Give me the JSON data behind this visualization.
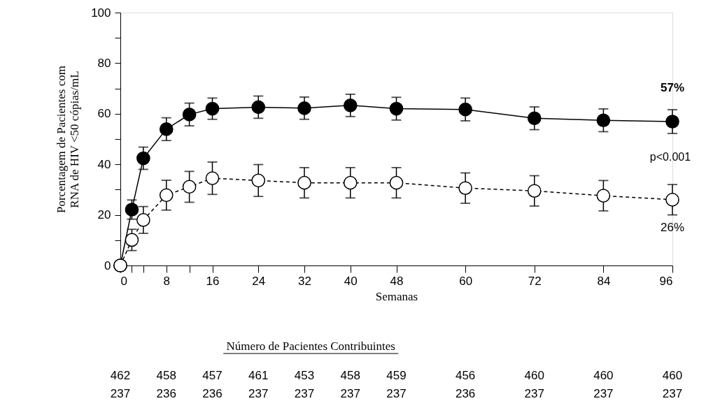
{
  "chart_data": {
    "type": "line",
    "xlabel": "Semanas",
    "ylabel": "Porcentagem de Pacientes com\nRNA de HIV <50 cópias/mL",
    "x": [
      0,
      2,
      4,
      8,
      12,
      16,
      24,
      32,
      40,
      48,
      60,
      72,
      84,
      96
    ],
    "series": [
      {
        "color": "#000000",
        "marker": "circle",
        "line_style": "solid",
        "values": [
          0,
          22.1,
          42.4,
          53.9,
          59.7,
          62.0,
          62.6,
          62.2,
          63.3,
          62.0,
          61.7,
          58.2,
          57.4,
          56.9
        ],
        "errors": [
          null,
          3.8,
          4.4,
          4.5,
          4.5,
          4.2,
          4.4,
          4.4,
          4.4,
          4.5,
          4.5,
          4.5,
          4.5,
          4.7
        ]
      },
      {
        "color": "#000000",
        "marker": "circle",
        "line_style": "dashed",
        "values": [
          0,
          10.1,
          18.0,
          27.8,
          31.1,
          34.5,
          33.6,
          32.7,
          32.7,
          32.7,
          30.6,
          29.5,
          27.6,
          26.0
        ],
        "errors": [
          null,
          4.2,
          5.3,
          5.9,
          6.1,
          6.4,
          6.3,
          6.0,
          6.0,
          6.0,
          6.0,
          6.0,
          6.0,
          6.0
        ]
      }
    ],
    "xlim": [
      0,
      96
    ],
    "xticks": [
      0,
      {
        "value": 2,
        "label": null
      },
      {
        "value": 4,
        "label": null
      },
      8,
      {
        "value": 12,
        "label": null
      },
      16,
      24,
      32,
      40,
      48,
      60,
      72,
      84,
      96
    ],
    "ylim": [
      0,
      100
    ],
    "yticks": [
      0,
      {
        "value": 10,
        "label": null
      },
      20,
      {
        "value": 30,
        "label": null
      },
      40,
      {
        "value": 50,
        "label": null
      },
      60,
      {
        "value": 70,
        "label": null
      },
      80,
      {
        "value": 90,
        "label": null
      },
      100
    ],
    "grid": false,
    "annotations": [
      {
        "text": "57%",
        "x": 96,
        "y": 56.9
      },
      {
        "text": "26%",
        "x": 96,
        "y": 26.0
      },
      "p<0.001",
      "Número de Pacientes Contribuintes",
      "462",
      "458",
      "457",
      "461",
      "453",
      "458",
      "459",
      "456",
      "460",
      "460",
      "460",
      "237",
      "236",
      "236",
      "237",
      "237",
      "237",
      "237",
      "236",
      "237",
      "237",
      "237"
    ]
  }
}
